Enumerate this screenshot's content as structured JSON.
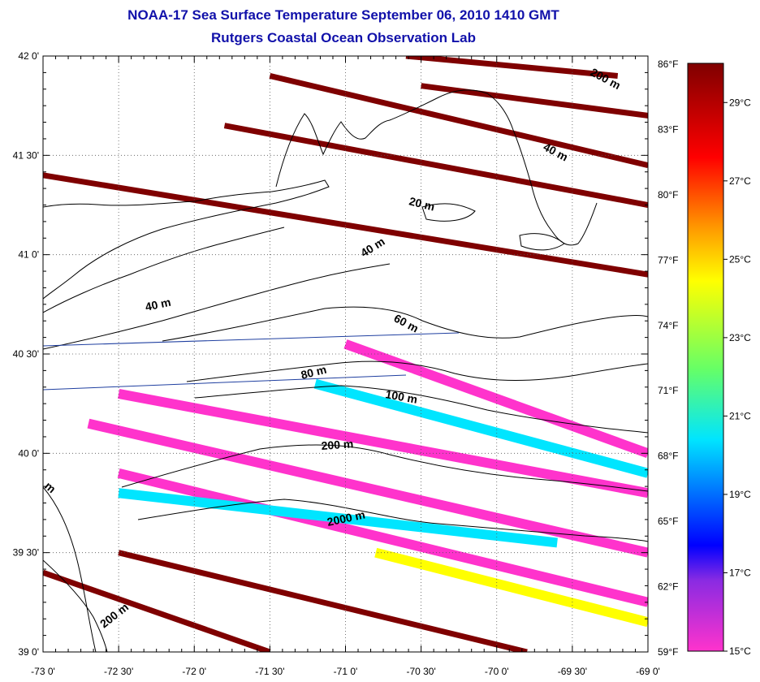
{
  "header": {
    "title": "NOAA-17 Sea Surface Temperature September 06, 2010 1410 GMT",
    "subtitle": "Rutgers Coastal Ocean Observation Lab"
  },
  "axes": {
    "lon_labels": [
      "-73 0'",
      "-72 30'",
      "-72 0'",
      "-71 30'",
      "-71 0'",
      "-70 30'",
      "-70 0'",
      "-69 30'",
      "-69 0'"
    ],
    "lat_labels": [
      "42 0'",
      "41 30'",
      "41 0'",
      "40 30'",
      "40 0'",
      "39 30'",
      "39 0'"
    ],
    "lon_range": [
      -73.0,
      -69.0
    ],
    "lat_range": [
      39.0,
      42.0
    ],
    "grid": "dotted"
  },
  "colorbar": {
    "fahrenheit_labels": [
      "86°F",
      "83°F",
      "80°F",
      "77°F",
      "74°F",
      "71°F",
      "68°F",
      "65°F",
      "62°F",
      "59°F"
    ],
    "celsius_labels": [
      "29°C",
      "27°C",
      "25°C",
      "23°C",
      "21°C",
      "19°C",
      "17°C",
      "15°C"
    ],
    "range_c": [
      15,
      30
    ],
    "colors": {
      "min": "#ff33cc",
      "violet": "#8a2be2",
      "blue": "#0000ff",
      "cyan": "#00e5ff",
      "green": "#66ff66",
      "yellow": "#ffff00",
      "orange": "#ff9900",
      "red": "#ff0000",
      "max": "#7f0000"
    }
  },
  "contour_labels": [
    "200 m",
    "40 m",
    "20 m",
    "40 m",
    "40 m",
    "60 m",
    "80 m",
    "100 m",
    "200 m",
    "2000 m",
    "200 m",
    "m"
  ],
  "map_data": {
    "land": "Southern New England coast (Long Island, Rhode Island, Cape Cod, Nantucket, Martha's Vineyard)",
    "swaths": [
      {
        "color": "#7f0000",
        "from": [
          -69.2,
          41.9
        ],
        "to": [
          -70.6,
          42.0
        ]
      },
      {
        "color": "#7f0000",
        "from": [
          -69.0,
          41.7
        ],
        "to": [
          -70.5,
          41.85
        ]
      },
      {
        "color": "#7f0000",
        "from": [
          -69.0,
          41.45
        ],
        "to": [
          -71.5,
          41.9
        ]
      },
      {
        "color": "#7f0000",
        "from": [
          -69.0,
          41.25
        ],
        "to": [
          -71.8,
          41.65
        ]
      },
      {
        "color": "#7f0000",
        "from": [
          -69.0,
          40.9
        ],
        "to": [
          -73.0,
          41.4
        ]
      },
      {
        "color": "#ff33cc",
        "from": [
          -69.0,
          40.0
        ],
        "to": [
          -71.0,
          40.55
        ]
      },
      {
        "color": "#ff33cc",
        "from": [
          -69.0,
          39.8
        ],
        "to": [
          -72.5,
          40.3
        ]
      },
      {
        "color": "#00e5ff",
        "from": [
          -69.0,
          39.9
        ],
        "to": [
          -71.2,
          40.35
        ]
      },
      {
        "color": "#ff33cc",
        "from": [
          -69.0,
          39.5
        ],
        "to": [
          -72.7,
          40.15
        ]
      },
      {
        "color": "#ff33cc",
        "from": [
          -69.0,
          39.25
        ],
        "to": [
          -72.5,
          39.9
        ]
      },
      {
        "color": "#00e5ff",
        "from": [
          -69.6,
          39.55
        ],
        "to": [
          -72.5,
          39.8
        ]
      },
      {
        "color": "#ffff00",
        "from": [
          -69.0,
          39.15
        ],
        "to": [
          -70.8,
          39.5
        ]
      },
      {
        "color": "#7f0000",
        "from": [
          -69.8,
          39.0
        ],
        "to": [
          -72.5,
          39.5
        ]
      },
      {
        "color": "#7f0000",
        "from": [
          -71.5,
          39.0
        ],
        "to": [
          -73.0,
          39.4
        ]
      }
    ]
  }
}
